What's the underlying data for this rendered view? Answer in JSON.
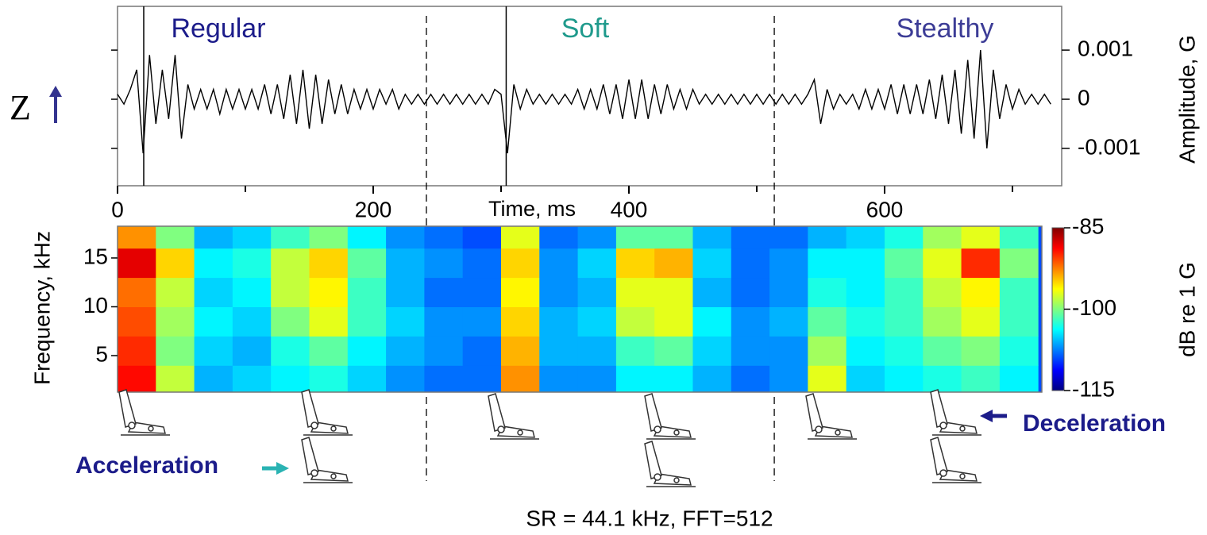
{
  "labels": {
    "z_axis": "Z",
    "acceleration": "Acceleration",
    "deceleration": "Deceleration",
    "footer": "SR = 44.1 kHz, FFT=512"
  },
  "chart_data": [
    {
      "type": "line",
      "xlabel": "Time, ms",
      "ylabel": "Amplitude, G",
      "annotations": [
        {
          "text": "Regular",
          "color": "#1c1c8a"
        },
        {
          "text": "Soft",
          "color": "#1f9a8c"
        },
        {
          "text": "Stealthy",
          "color": "#3c3c96"
        }
      ],
      "x": [
        0,
        5,
        10,
        15,
        20,
        25,
        30,
        35,
        40,
        45,
        50,
        55,
        60,
        65,
        70,
        75,
        80,
        85,
        90,
        95,
        100,
        105,
        110,
        115,
        120,
        125,
        130,
        135,
        140,
        145,
        150,
        155,
        160,
        165,
        170,
        175,
        180,
        185,
        190,
        195,
        200,
        205,
        210,
        215,
        220,
        225,
        230,
        235,
        240,
        245,
        250,
        255,
        260,
        265,
        270,
        275,
        280,
        285,
        290,
        295,
        300,
        305,
        310,
        315,
        320,
        325,
        330,
        335,
        340,
        345,
        350,
        355,
        360,
        365,
        370,
        375,
        380,
        385,
        390,
        395,
        400,
        405,
        410,
        415,
        420,
        425,
        430,
        435,
        440,
        445,
        450,
        455,
        460,
        465,
        470,
        475,
        480,
        485,
        490,
        495,
        500,
        505,
        510,
        515,
        520,
        525,
        530,
        535,
        540,
        545,
        550,
        555,
        560,
        565,
        570,
        575,
        580,
        585,
        590,
        595,
        600,
        605,
        610,
        615,
        620,
        625,
        630,
        635,
        640,
        645,
        650,
        655,
        660,
        665,
        670,
        675,
        680,
        685,
        690,
        695,
        700,
        705,
        710,
        715,
        720,
        725,
        730
      ],
      "series": [
        {
          "color": "#000000",
          "values": [
            0.0001,
            -0.0001,
            0.0002,
            0.0006,
            -0.0011,
            0.0009,
            -0.0005,
            0.0006,
            -0.0004,
            0.0009,
            -0.0008,
            0.0003,
            -0.0002,
            0.0002,
            -0.0002,
            0.0002,
            -0.0003,
            0.0002,
            -0.0002,
            0.0002,
            -0.0002,
            0.0002,
            -0.0002,
            0.0003,
            -0.0003,
            0.0003,
            -0.0004,
            0.0005,
            -0.0005,
            0.0006,
            -0.0006,
            0.0005,
            -0.0005,
            0.0004,
            -0.0003,
            0.0003,
            -0.0003,
            0.0002,
            -0.0002,
            0.0002,
            -0.0002,
            0.0002,
            -0.0001,
            0.0002,
            -0.0002,
            0.0001,
            -0.0001,
            0.0001,
            -0.0001,
            0.0001,
            -0.0001,
            0.0001,
            -0.0001,
            0.0001,
            -0.0001,
            0.0001,
            -0.0001,
            0.0001,
            -0.0001,
            0.0002,
            0.0001,
            -0.0011,
            0.0003,
            -0.0002,
            0.0002,
            -0.0001,
            0.0001,
            -0.0001,
            0.0001,
            -0.0001,
            0.0001,
            -0.0001,
            0.0002,
            -0.0002,
            0.0002,
            -0.0002,
            0.0003,
            -0.0003,
            0.0003,
            -0.0004,
            0.0004,
            -0.0004,
            0.0004,
            -0.0004,
            0.0003,
            -0.0003,
            0.0003,
            -0.0002,
            0.0002,
            -0.0002,
            0.0002,
            -0.0001,
            0.0001,
            -0.0001,
            0.0001,
            -0.0001,
            0.0001,
            -0.0001,
            0.0001,
            -0.0001,
            0.0001,
            -0.0001,
            0.0001,
            -0.0001,
            0.0001,
            -0.0001,
            0.0001,
            -0.0001,
            0.0001,
            0.0004,
            -0.0005,
            0.0002,
            -0.0002,
            0.0001,
            -0.0001,
            0.0001,
            -0.0002,
            0.0002,
            -0.0002,
            0.0002,
            -0.0002,
            0.0003,
            -0.0003,
            0.0003,
            -0.0003,
            0.0003,
            -0.0003,
            0.0004,
            -0.0004,
            0.0005,
            -0.0005,
            0.0006,
            -0.0007,
            0.0008,
            -0.0008,
            0.001,
            -0.001,
            0.0006,
            -0.0004,
            0.0003,
            -0.0002,
            0.0002,
            -0.0001,
            0.0001,
            -0.0001,
            0.0001,
            -0.0001
          ]
        }
      ],
      "xlim": [
        0,
        738.5
      ],
      "xticks": [
        0,
        200,
        400,
        600
      ],
      "xminor": [
        100,
        300,
        500,
        700
      ],
      "ylim": [
        -0.00176,
        0.00189
      ],
      "yticks": [
        -0.001,
        0,
        0.001
      ],
      "event_lines": [
        20.5,
        304
      ],
      "dividers": [
        241.6,
        513.7
      ]
    },
    {
      "type": "heatmap",
      "ylabel": "Frequency, kHz",
      "colorbar_label": "dB re 1 G",
      "colormap": "jet",
      "x_bins": [
        0,
        30,
        60,
        90,
        120,
        150,
        180,
        210,
        240,
        270,
        300,
        330,
        360,
        390,
        420,
        450,
        480,
        510,
        540,
        570,
        600,
        630,
        660,
        690,
        720
      ],
      "y_bins": [
        1.26,
        4,
        7,
        10,
        13,
        16,
        18.25
      ],
      "z": [
        [
          -89,
          -98,
          -106,
          -105,
          -104,
          -103,
          -105,
          -107,
          -108,
          -108,
          -93,
          -107,
          -107,
          -104,
          -104,
          -106,
          -108,
          -107,
          -97,
          -105,
          -104,
          -103,
          -102,
          -104
        ],
        [
          -90,
          -100,
          -105,
          -106,
          -103,
          -101,
          -104,
          -106,
          -107,
          -108,
          -94,
          -106,
          -106,
          -102,
          -101,
          -105,
          -107,
          -107,
          -99,
          -104,
          -103,
          -101,
          -100,
          -103
        ],
        [
          -91,
          -99,
          -104,
          -105,
          -100,
          -97,
          -102,
          -105,
          -107,
          -107,
          -95,
          -106,
          -105,
          -98,
          -97,
          -104,
          -107,
          -106,
          -101,
          -103,
          -102,
          -99,
          -97,
          -102
        ],
        [
          -92,
          -98,
          -105,
          -104,
          -98,
          -96,
          -102,
          -106,
          -108,
          -108,
          -96,
          -107,
          -106,
          -97,
          -97,
          -106,
          -108,
          -107,
          -103,
          -104,
          -102,
          -98,
          -96,
          -102
        ],
        [
          -88,
          -95,
          -104,
          -103,
          -98,
          -95,
          -101,
          -106,
          -107,
          -108,
          -95,
          -107,
          -105,
          -95,
          -94,
          -105,
          -108,
          -107,
          -104,
          -104,
          -101,
          -97,
          -90,
          -100
        ],
        [
          -93,
          -100,
          -106,
          -105,
          -102,
          -100,
          -104,
          -107,
          -108,
          -109,
          -97,
          -108,
          -107,
          -101,
          -101,
          -106,
          -108,
          -108,
          -106,
          -105,
          -103,
          -99,
          -97,
          -102
        ]
      ],
      "xlim": [
        0,
        723
      ],
      "ylim": [
        1.26,
        18.25
      ],
      "yticks": [
        5,
        10,
        15
      ],
      "clim": [
        -115,
        -85
      ],
      "cticks": [
        -115,
        -100,
        -85
      ]
    }
  ]
}
